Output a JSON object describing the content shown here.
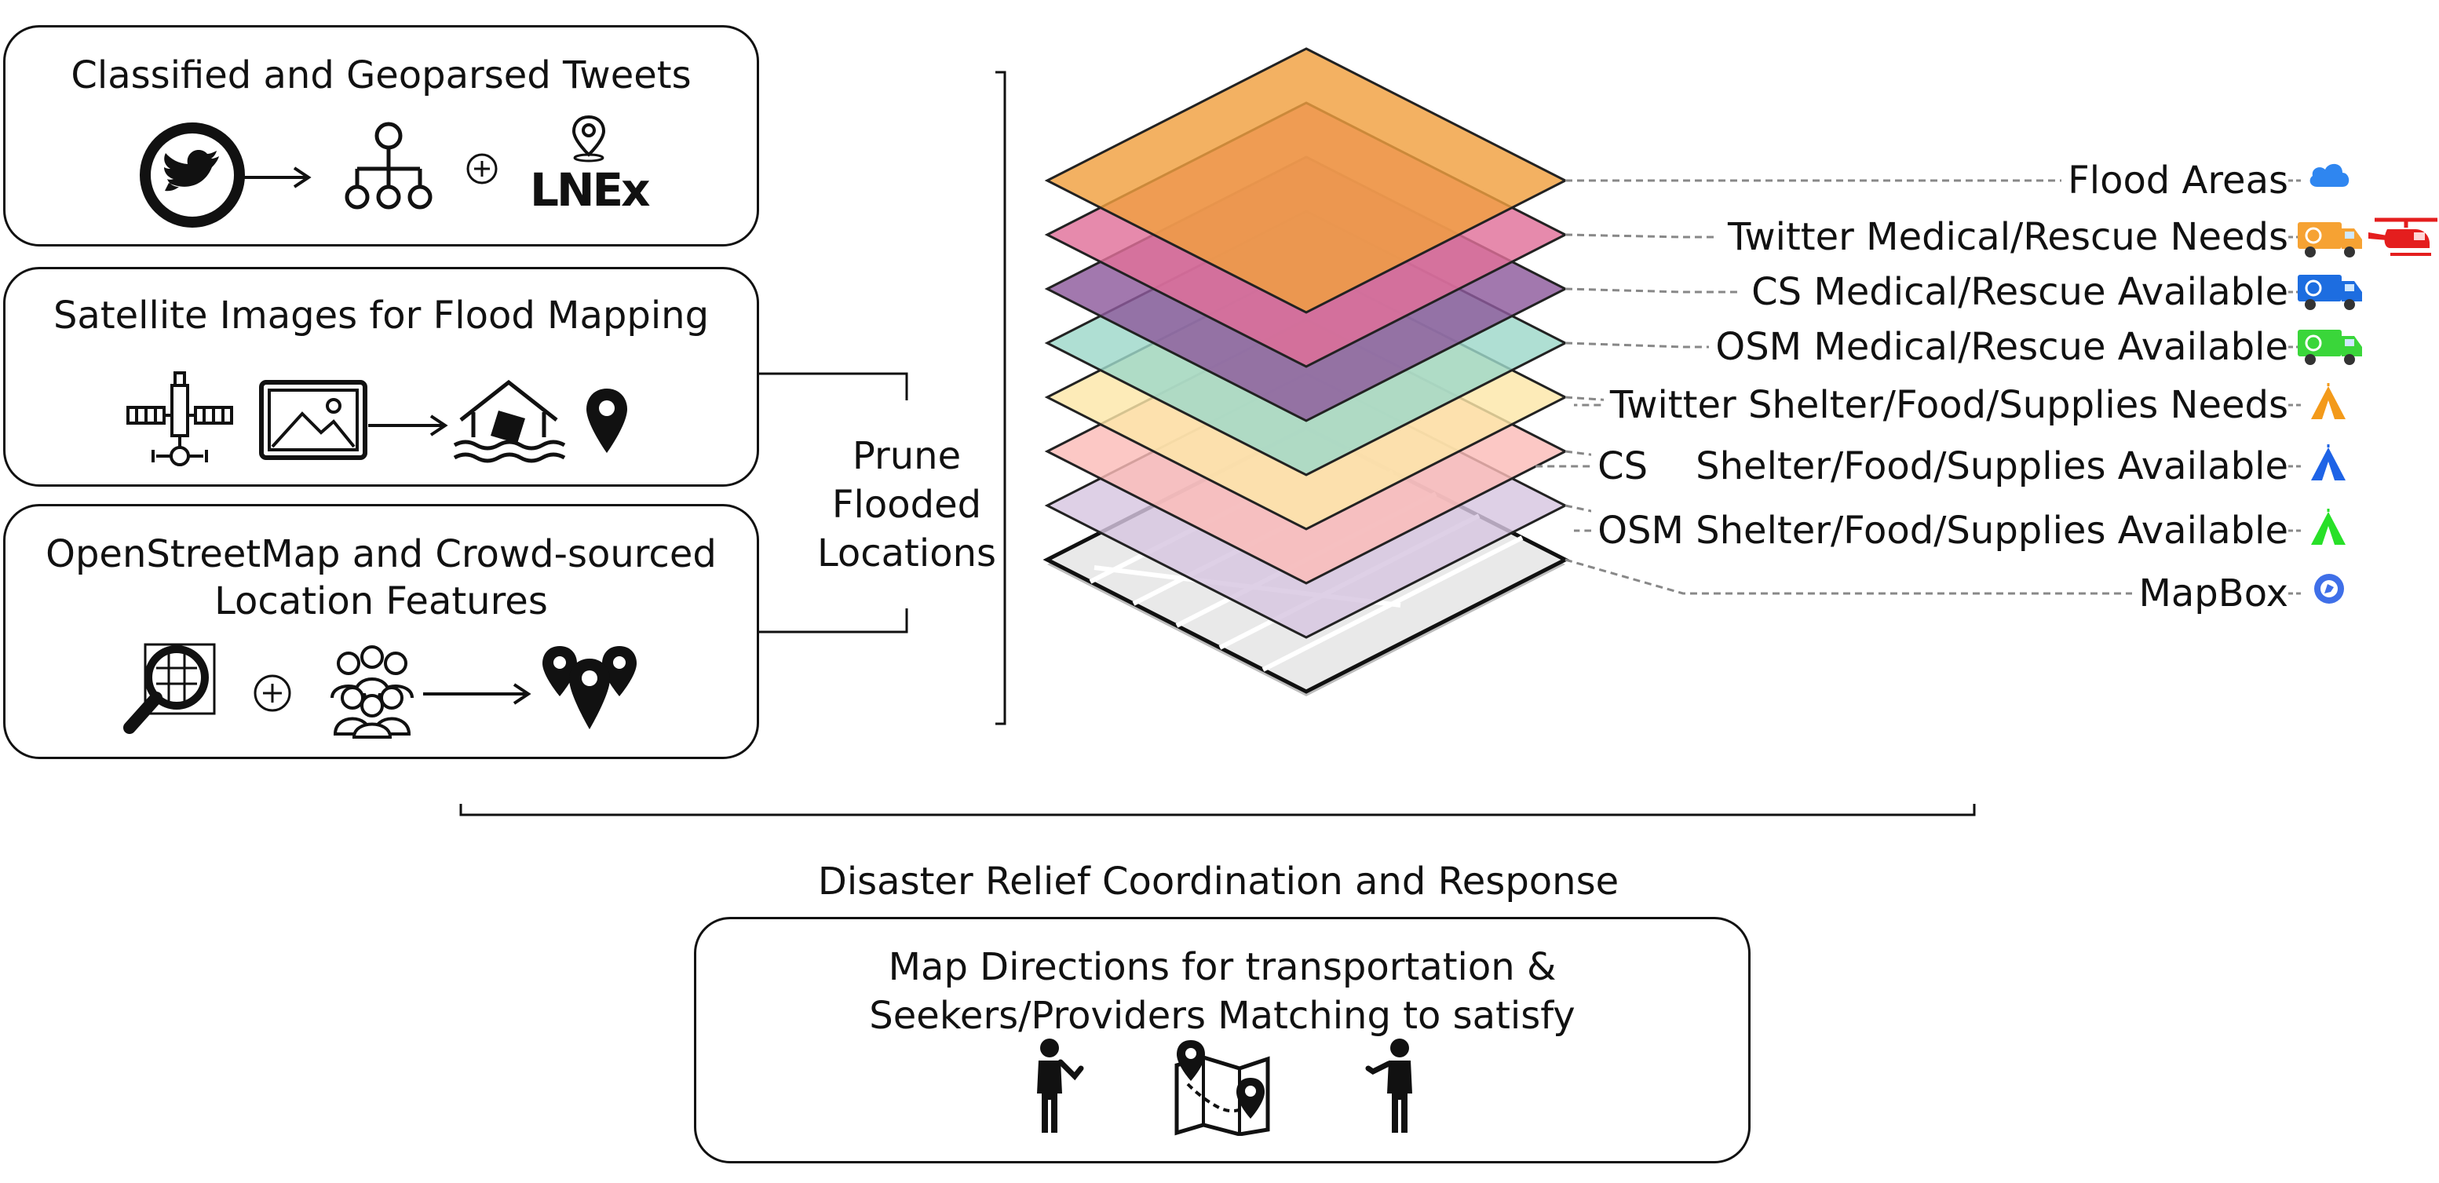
{
  "sources": {
    "tweets": {
      "title": "Classified and Geoparsed Tweets",
      "lnex_logo_text": "LNEx"
    },
    "satellite": {
      "title": "Satellite Images for Flood Mapping"
    },
    "osm": {
      "title_line1": "OpenStreetMap and Crowd-sourced",
      "title_line2": "Location Features"
    }
  },
  "prune": {
    "line1": "Prune",
    "line2": "Flooded",
    "line3": "Locations"
  },
  "layers": [
    {
      "label": "Flood Areas",
      "color": "#f0a040",
      "icon": "cloud-icon"
    },
    {
      "label": "Twitter Medical/Rescue Needs",
      "color": "#e0709a",
      "icon": "ambulance-helicopter-icon"
    },
    {
      "label": "CS Medical/Rescue Available",
      "color": "#8e5a9c",
      "icon": "ambulance-blue-icon"
    },
    {
      "label": "OSM Medical/Rescue Available",
      "color": "#9dd8c9",
      "icon": "ambulance-green-icon"
    },
    {
      "label": "Twitter Shelter/Food/Supplies Needs",
      "color": "#fde6a8",
      "icon": "tent-orange-icon"
    },
    {
      "label": "CS    Shelter/Food/Supplies Available",
      "color": "#fbbcb8",
      "icon": "tent-blue-icon"
    },
    {
      "label": "OSM Shelter/Food/Supplies Available",
      "color": "#d7c6e0",
      "icon": "tent-green-icon"
    },
    {
      "label": "MapBox",
      "color": "#e9e9e9",
      "icon": "mapbox-icon"
    }
  ],
  "colors": {
    "cloud": "#2f86f0",
    "ambulance_orange": "#f6a233",
    "helicopter": "#e41e1e",
    "ambulance_blue": "#1d6de0",
    "ambulance_green": "#3ad63a",
    "tent_orange": "#f39a1a",
    "tent_blue": "#1e63e6",
    "tent_green": "#28e028",
    "mapbox": "#3f6fe8"
  },
  "response": {
    "heading": "Disaster Relief Coordination and Response",
    "line1": "Map Directions for transportation &",
    "line2": "Seekers/Providers Matching to satisfy"
  }
}
